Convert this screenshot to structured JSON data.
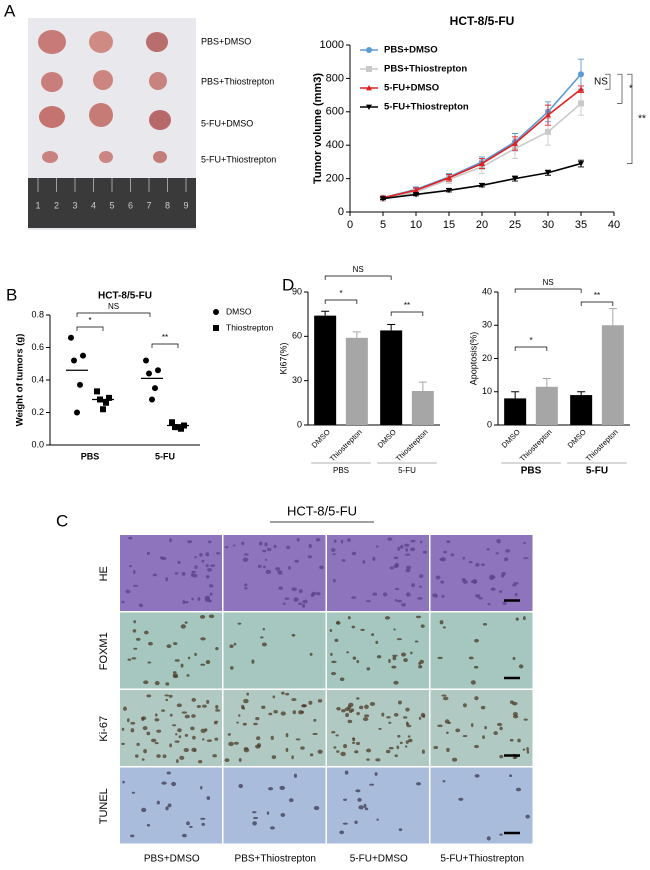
{
  "panels": [
    "A",
    "B",
    "C",
    "D"
  ],
  "photo_labels": [
    "PBS+DMSO",
    "PBS+Thiostrepton",
    "5-FU+DMSO",
    "5-FU+Thiostrepton"
  ],
  "ruler_labels": [
    "1",
    "2",
    "3",
    "4",
    "5",
    "6",
    "7",
    "8",
    "9"
  ],
  "ihc": {
    "title": "HCT-8/5-FU",
    "rows": [
      "HE",
      "FOXM1",
      "Ki-67",
      "TUNEL"
    ],
    "columns": [
      "PBS+DMSO",
      "PBS+Thiostrepton",
      "5-FU+DMSO",
      "5-FU+Thiostrepton"
    ]
  },
  "chart_data": [
    {
      "type": "line",
      "title": "HCT-8/5-FU",
      "ylabel": "Tumor volume (mm3)",
      "x": [
        5,
        10,
        15,
        20,
        25,
        30,
        35
      ],
      "xlim": [
        0,
        40
      ],
      "xticks": [
        0,
        5,
        10,
        15,
        20,
        25,
        30,
        35,
        40
      ],
      "ylim": [
        0,
        1000
      ],
      "yticks": [
        0,
        200,
        400,
        600,
        800,
        1000
      ],
      "legend": "upper left",
      "annotations": [
        "NS",
        "*",
        "**"
      ],
      "series": [
        {
          "name": "PBS+DMSO",
          "color": "#5b9bd5",
          "marker": "circle",
          "values": [
            85,
            135,
            210,
            300,
            420,
            600,
            825
          ],
          "errors": [
            10,
            15,
            20,
            30,
            50,
            60,
            90
          ]
        },
        {
          "name": "PBS+Thiostrepton",
          "color": "#c9c9c9",
          "marker": "square",
          "values": [
            80,
            120,
            195,
            270,
            380,
            480,
            650
          ],
          "errors": [
            10,
            15,
            25,
            40,
            60,
            80,
            70
          ]
        },
        {
          "name": "5-FU+DMSO",
          "color": "#e02020",
          "marker": "triangle",
          "values": [
            85,
            130,
            205,
            290,
            410,
            580,
            735
          ],
          "errors": [
            10,
            15,
            20,
            30,
            40,
            60,
            20
          ]
        },
        {
          "name": "5-FU+Thiostrepton",
          "color": "#000000",
          "marker": "triangle-down",
          "values": [
            80,
            105,
            130,
            160,
            200,
            235,
            290
          ],
          "errors": [
            5,
            8,
            10,
            10,
            15,
            15,
            20
          ]
        }
      ]
    },
    {
      "type": "dot",
      "title": "HCT-8/5-FU",
      "ylabel": "Weight of tumors (g)",
      "categories": [
        "PBS",
        "5-FU"
      ],
      "ylim": [
        0,
        0.8
      ],
      "yticks": [
        {
          "value": 0,
          "label": "0.0"
        },
        0.2,
        0.4,
        0.6,
        0.8
      ],
      "legend": "right",
      "annotations": [
        "NS",
        "*",
        "**"
      ],
      "series": [
        {
          "name": "DMSO",
          "color": "#000000",
          "marker": "circle",
          "values": [
            [
              0.66,
              0.55,
              0.52,
              0.37,
              0.2
            ],
            [
              0.52,
              0.46,
              0.44,
              0.35,
              0.28
            ]
          ],
          "means": [
            0.46,
            0.41
          ]
        },
        {
          "name": "Thiostrepton",
          "color": "#000000",
          "marker": "square",
          "values": [
            [
              0.33,
              0.29,
              0.28,
              0.26,
              0.22
            ],
            [
              0.14,
              0.12,
              0.11,
              0.1,
              0.11
            ]
          ],
          "means": [
            0.28,
            0.12
          ]
        }
      ]
    },
    {
      "type": "bar",
      "ylabel": "Ki67(%)",
      "categories": [
        "DMSO",
        "Thiostrepton",
        "DMSO",
        "Thiostrepton"
      ],
      "groups": [
        "PBS",
        "5-FU"
      ],
      "values": [
        74,
        59,
        64,
        23
      ],
      "errors": [
        3,
        4,
        4,
        6
      ],
      "colors": [
        "#000000",
        "#a6a6a6",
        "#000000",
        "#a6a6a6"
      ],
      "ylim": [
        0,
        90
      ],
      "yticks": [
        0,
        30,
        60,
        90
      ],
      "annotations": [
        "*",
        "**",
        "NS"
      ]
    },
    {
      "type": "bar",
      "ylabel": "Apoptosis(%)",
      "categories": [
        "DMSO",
        "Thiostrepton",
        "DMSO",
        "Thiostrepton"
      ],
      "groups": [
        "PBS",
        "5-FU"
      ],
      "values": [
        8,
        11.5,
        9,
        30
      ],
      "errors": [
        2,
        2.5,
        1,
        5
      ],
      "colors": [
        "#000000",
        "#a6a6a6",
        "#000000",
        "#a6a6a6"
      ],
      "ylim": [
        0,
        40
      ],
      "yticks": [
        0,
        10,
        20,
        30,
        40
      ],
      "annotations": [
        "*",
        "**",
        "NS"
      ]
    }
  ]
}
